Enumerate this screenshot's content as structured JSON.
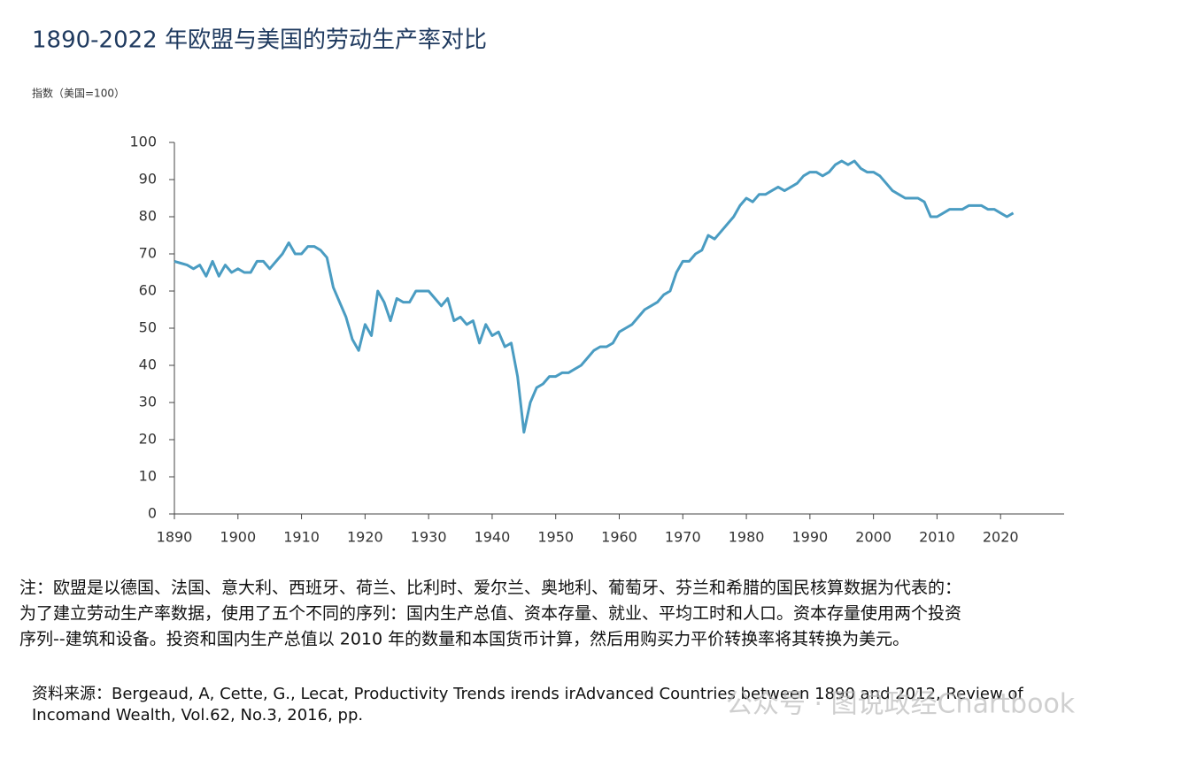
{
  "chart_data": {
    "type": "line",
    "title": "1890-2022 年欧盟与美国的劳动生产率对比",
    "y_label": "指数（美国=100）",
    "x": [
      1890,
      1891,
      1892,
      1893,
      1894,
      1895,
      1896,
      1897,
      1898,
      1899,
      1900,
      1901,
      1902,
      1903,
      1904,
      1905,
      1906,
      1907,
      1908,
      1909,
      1910,
      1911,
      1912,
      1913,
      1914,
      1915,
      1916,
      1917,
      1918,
      1919,
      1920,
      1921,
      1922,
      1923,
      1924,
      1925,
      1926,
      1927,
      1928,
      1929,
      1930,
      1931,
      1932,
      1933,
      1934,
      1935,
      1936,
      1937,
      1938,
      1939,
      1940,
      1941,
      1942,
      1943,
      1944,
      1945,
      1946,
      1947,
      1948,
      1949,
      1950,
      1951,
      1952,
      1953,
      1954,
      1955,
      1956,
      1957,
      1958,
      1959,
      1960,
      1961,
      1962,
      1963,
      1964,
      1965,
      1966,
      1967,
      1968,
      1969,
      1970,
      1971,
      1972,
      1973,
      1974,
      1975,
      1976,
      1977,
      1978,
      1979,
      1980,
      1981,
      1982,
      1983,
      1984,
      1985,
      1986,
      1987,
      1988,
      1989,
      1990,
      1991,
      1992,
      1993,
      1994,
      1995,
      1996,
      1997,
      1998,
      1999,
      2000,
      2001,
      2002,
      2003,
      2004,
      2005,
      2006,
      2007,
      2008,
      2009,
      2010,
      2011,
      2012,
      2013,
      2014,
      2015,
      2016,
      2017,
      2018,
      2019,
      2020,
      2021,
      2022
    ],
    "values": [
      68,
      67.5,
      67,
      66,
      67,
      64,
      68,
      64,
      67,
      65,
      66,
      65,
      65,
      68,
      68,
      66,
      68,
      70,
      73,
      70,
      70,
      72,
      72,
      71,
      69,
      61,
      57,
      53,
      47,
      44,
      51,
      48,
      60,
      57,
      52,
      58,
      57,
      57,
      60,
      60,
      60,
      58,
      56,
      58,
      52,
      53,
      51,
      52,
      46,
      51,
      48,
      49,
      45,
      46,
      37,
      22,
      30,
      34,
      35,
      37,
      37,
      38,
      38,
      39,
      40,
      42,
      44,
      45,
      45,
      46,
      49,
      50,
      51,
      53,
      55,
      56,
      57,
      59,
      60,
      65,
      68,
      68,
      70,
      71,
      75,
      74,
      76,
      78,
      80,
      83,
      85,
      84,
      86,
      86,
      87,
      88,
      87,
      88,
      89,
      91,
      92,
      92,
      91,
      92,
      94,
      95,
      94,
      95,
      93,
      92,
      92,
      91,
      89,
      87,
      86,
      85,
      85,
      85,
      84,
      80,
      80,
      81,
      82,
      82,
      82,
      83,
      83,
      83,
      82,
      82,
      81,
      80,
      81
    ],
    "color": "#4a9cc2",
    "xlim": [
      1890,
      2030
    ],
    "xticks": [
      1890,
      1900,
      1910,
      1920,
      1930,
      1940,
      1950,
      1960,
      1970,
      1980,
      1990,
      2000,
      2010,
      2020
    ],
    "ylim": [
      0,
      100
    ],
    "yticks": [
      0,
      10,
      20,
      30,
      40,
      50,
      60,
      70,
      80,
      90,
      100
    ],
    "grid": false
  },
  "notes": [
    "注：欧盟是以德国、法国、意大利、西班牙、荷兰、比利时、爱尔兰、奥地利、葡萄牙、芬兰和希腊的国民核算数据为代表的：",
    "为了建立劳动生产率数据，使用了五个不同的序列：国内生产总值、资本存量、就业、平均工时和人口。资本存量使用两个投资",
    "序列--建筑和设备。投资和国内生产总值以 2010 年的数量和本国货币计算，然后用购买力平价转换率将其转换为美元。"
  ],
  "source": [
    "资料来源：Bergeaud, A, Cette, G., Lecat, Productivity Trends irends irAdvanced Countries between 1890 and 2012, Review of",
    "Incomand Wealth, Vol.62, No.3, 2016, pp."
  ],
  "watermark": "公众号 · 图说政经Chartbook"
}
